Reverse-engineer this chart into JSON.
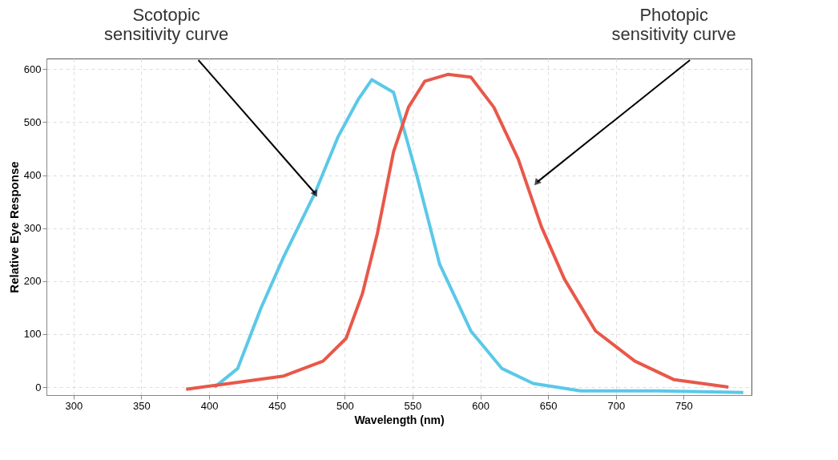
{
  "chart_data": {
    "type": "line",
    "xlabel": "Wavelength (nm)",
    "ylabel": "Relative Eye Response",
    "xlim": [
      280,
      800
    ],
    "ylim": [
      -15,
      620
    ],
    "xticks": [
      300,
      350,
      400,
      450,
      500,
      550,
      600,
      650,
      700,
      750
    ],
    "yticks": [
      0,
      100,
      200,
      300,
      400,
      500,
      600
    ],
    "grid": true,
    "line_style": "solid",
    "marker": "none",
    "annotations": [
      {
        "text": "Scotopic\nsensitivity curve",
        "x": 478,
        "y": 366
      },
      {
        "text": "Photopic\nsensitivity curve",
        "x": 642,
        "y": 387
      }
    ],
    "series": [
      {
        "color": "#5bc8e8",
        "x": [
          404,
          421,
          438,
          455,
          478,
          495,
          510,
          520,
          536,
          553,
          570,
          593,
          616,
          639,
          674,
          731,
          794
        ],
        "values": [
          0,
          35,
          148,
          246,
          366,
          472,
          543,
          580,
          556,
          401,
          232,
          106,
          35,
          7,
          -7,
          -7,
          -10
        ]
      },
      {
        "color": "#e8584a",
        "x": [
          383,
          415,
          455,
          484,
          501,
          513,
          524,
          536,
          547,
          559,
          576,
          593,
          610,
          628,
          645,
          662,
          685,
          714,
          743,
          783
        ],
        "values": [
          -4,
          7,
          21,
          49,
          92,
          176,
          289,
          444,
          528,
          577,
          590,
          585,
          528,
          430,
          303,
          204,
          106,
          49,
          14,
          0
        ]
      }
    ]
  }
}
